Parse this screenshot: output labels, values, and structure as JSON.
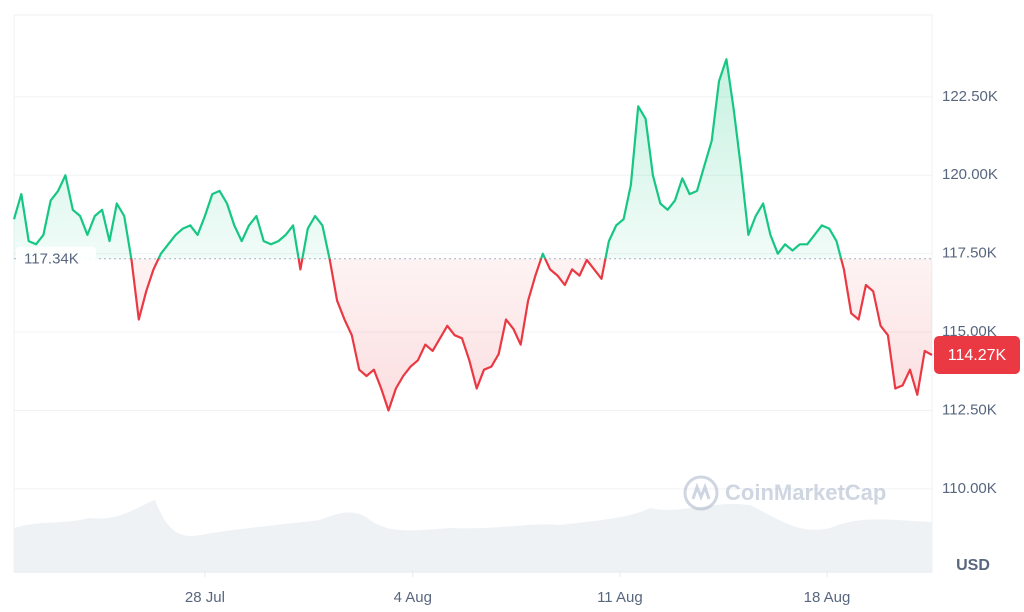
{
  "chart_data": {
    "type": "line",
    "values": [
      118.6,
      119.4,
      117.9,
      117.8,
      118.1,
      119.2,
      119.5,
      120.0,
      118.9,
      118.7,
      118.1,
      118.7,
      118.9,
      117.9,
      119.1,
      118.7,
      117.3,
      115.4,
      116.3,
      117.0,
      117.5,
      117.8,
      118.1,
      118.3,
      118.4,
      118.1,
      118.7,
      119.4,
      119.5,
      119.1,
      118.4,
      117.9,
      118.4,
      118.7,
      117.9,
      117.8,
      117.9,
      118.1,
      118.4,
      117.0,
      118.3,
      118.7,
      118.4,
      117.3,
      116.0,
      115.4,
      114.9,
      113.8,
      113.6,
      113.8,
      113.2,
      112.5,
      113.2,
      113.6,
      113.9,
      114.1,
      114.6,
      114.4,
      114.8,
      115.2,
      114.9,
      114.8,
      114.1,
      113.2,
      113.8,
      113.9,
      114.3,
      115.4,
      115.1,
      114.6,
      116.0,
      116.8,
      117.5,
      117.0,
      116.8,
      116.5,
      117.0,
      116.8,
      117.3,
      117.0,
      116.7,
      117.9,
      118.4,
      118.6,
      119.7,
      122.2,
      121.8,
      120.0,
      119.1,
      118.9,
      119.2,
      119.9,
      119.4,
      119.5,
      120.3,
      121.1,
      123.0,
      123.7,
      122.1,
      120.2,
      118.1,
      118.7,
      119.1,
      118.1,
      117.5,
      117.8,
      117.6,
      117.8,
      117.8,
      118.1,
      118.4,
      118.3,
      117.9,
      117.0,
      115.6,
      115.4,
      116.5,
      116.3,
      115.2,
      114.9,
      113.2,
      113.3,
      113.8,
      113.0,
      114.4,
      114.27
    ],
    "baseline": 117.34,
    "baseline_label": "117.34K",
    "last_value_label": "114.27K",
    "up_color": "#16c784",
    "down_color": "#ea3943",
    "ylim": [
      107.35,
      125.11
    ],
    "yticks": [
      {
        "value": 110,
        "label": "110.00K"
      },
      {
        "value": 112.5,
        "label": "112.50K"
      },
      {
        "value": 115,
        "label": "115.00K"
      },
      {
        "value": 117.5,
        "label": "117.50K"
      },
      {
        "value": 120,
        "label": "120.00K"
      },
      {
        "value": 122.5,
        "label": "122.50K"
      }
    ],
    "xlim": [
      0,
      125
    ],
    "xticks": [
      {
        "value": 26.0,
        "label": "28 Jul"
      },
      {
        "value": 54.3,
        "label": "4 Aug"
      },
      {
        "value": 82.5,
        "label": "11 Aug"
      },
      {
        "value": 110.7,
        "label": "18 Aug"
      }
    ],
    "y_axis_label": "USD",
    "watermark": "CoinMarketCap",
    "grid": true
  }
}
